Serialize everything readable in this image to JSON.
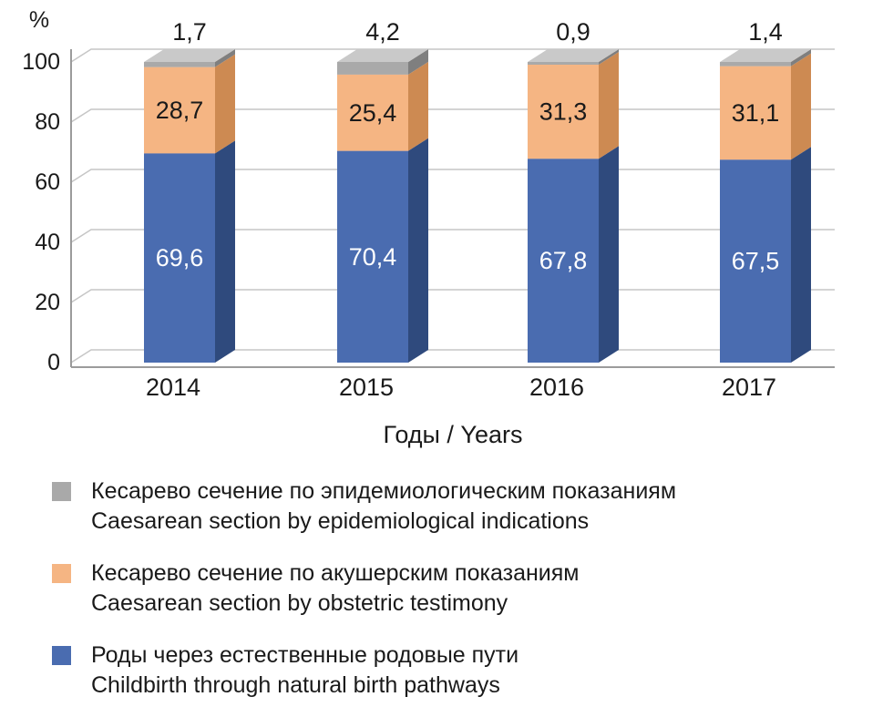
{
  "chart_data": {
    "type": "bar",
    "variant": "3d-stacked-column",
    "stacked": true,
    "title": "",
    "categories": [
      "2014",
      "2015",
      "2016",
      "2017"
    ],
    "series": [
      {
        "name": "Роды через естественные родовые пути",
        "name_en": "Childbirth through natural birth pathways",
        "values": [
          69.6,
          70.4,
          67.8,
          67.5
        ],
        "labels": [
          "69,6",
          "70,4",
          "67,8",
          "67,5"
        ],
        "color": "#4a6cb0",
        "side_color": "#2f4a7d",
        "top_color": "#6e8bc3",
        "label_color": "#ffffff",
        "label_position": "inside"
      },
      {
        "name": "Кесарево сечение по акушерским показаниям",
        "name_en": "Caesarean section by obstetric testimony",
        "values": [
          28.7,
          25.4,
          31.3,
          31.1
        ],
        "labels": [
          "28,7",
          "25,4",
          "31,3",
          "31,1"
        ],
        "color": "#f5b583",
        "side_color": "#cd8a52",
        "top_color": "#f8cda8",
        "label_color": "#1a1a1a",
        "label_position": "inside"
      },
      {
        "name": "Кесарево сечение по эпидемиологическим показаниям",
        "name_en": "Caesarean section by epidemiological indications",
        "values": [
          1.7,
          4.2,
          0.9,
          1.4
        ],
        "labels": [
          "1,7",
          "4,2",
          "0,9",
          "1,4"
        ],
        "color": "#a9a9a9",
        "side_color": "#7f7f7f",
        "top_color": "#c9c9c9",
        "label_color": "#1a1a1a",
        "label_position": "above"
      }
    ],
    "xlabel": "Годы / Years",
    "ylabel": "%",
    "ylim": [
      0,
      100
    ],
    "yticks": [
      0,
      20,
      40,
      60,
      80,
      100
    ],
    "ytick_labels": [
      "0",
      "20",
      "40",
      "60",
      "80",
      "100"
    ],
    "grid": true,
    "legend_position": "bottom"
  }
}
